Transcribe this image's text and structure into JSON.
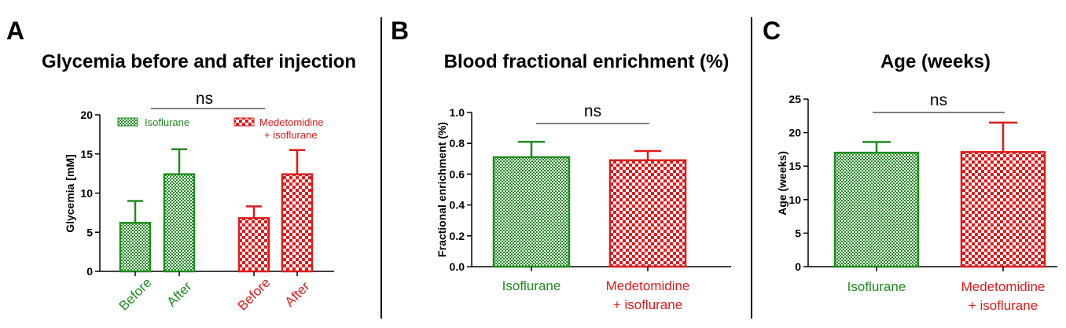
{
  "colors": {
    "green": "#1e8c1e",
    "red": "#e01b1b"
  },
  "chart_data": [
    {
      "panel": "A",
      "type": "bar",
      "title": "Glycemia before and after injection",
      "ylabel": "Glycemia [mM]",
      "ylim": [
        0,
        20
      ],
      "yticks": [
        "0",
        "5",
        "10",
        "15",
        "20"
      ],
      "categories": [
        "Before",
        "After",
        "Before",
        "After"
      ],
      "values": [
        6.2,
        12.4,
        6.8,
        12.4
      ],
      "errors": [
        2.8,
        3.2,
        1.5,
        3.1
      ],
      "series": [
        {
          "name": "Isoflurane",
          "bars": [
            0,
            1
          ],
          "color": "green"
        },
        {
          "name": "Medetomidine + isoflurane",
          "bars": [
            2,
            3
          ],
          "color": "red"
        }
      ],
      "legend": {
        "placement": "top",
        "green_label": "Isoflurane",
        "red_label_line1": "Medetomidine",
        "red_label_line2": "+ isoflurane"
      },
      "annotation": "ns"
    },
    {
      "panel": "B",
      "type": "bar",
      "title": "Blood fractional enrichment (%)",
      "ylabel": "Fractional enrichment (%)",
      "ylim": [
        0,
        1
      ],
      "yticks": [
        "0.0",
        "0.2",
        "0.4",
        "0.6",
        "0.8",
        "1.0"
      ],
      "categories": [
        "Isoflurane",
        "Medetomidine + isoflurane"
      ],
      "category_line1": [
        "Isoflurane",
        "Medetomidine"
      ],
      "category_line2": [
        "",
        "+ isoflurane"
      ],
      "values": [
        0.71,
        0.69
      ],
      "errors": [
        0.1,
        0.06
      ],
      "annotation": "ns"
    },
    {
      "panel": "C",
      "type": "bar",
      "title": "Age (weeks)",
      "ylabel": "Age (weeks)",
      "ylim": [
        0,
        25
      ],
      "yticks": [
        "0",
        "5",
        "10",
        "15",
        "20",
        "25"
      ],
      "categories": [
        "Isoflurane",
        "Medetomidine + isoflurane"
      ],
      "category_line1": [
        "Isoflurane",
        "Medetomidine"
      ],
      "category_line2": [
        "",
        "+ isoflurane"
      ],
      "values": [
        17.0,
        17.1
      ],
      "errors": [
        1.6,
        4.4
      ],
      "annotation": "ns"
    }
  ]
}
